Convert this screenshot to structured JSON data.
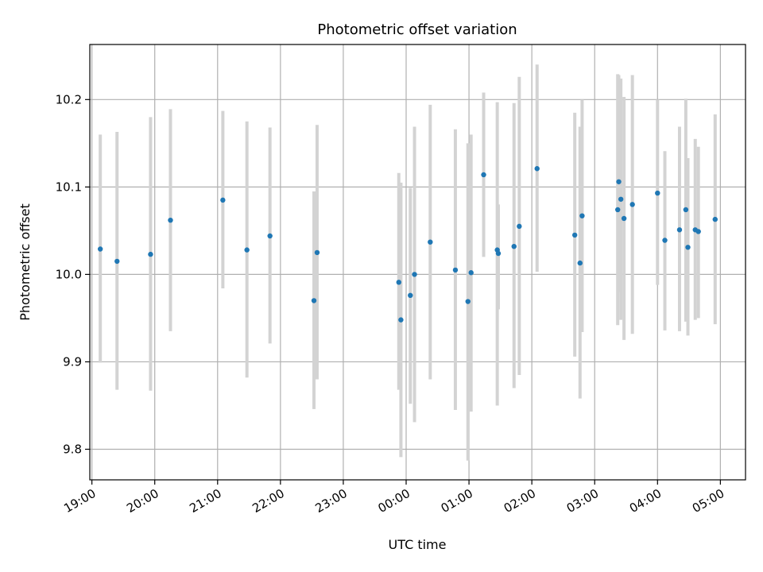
{
  "chart_data": {
    "type": "scatter",
    "title": "Photometric offset variation",
    "xlabel": "UTC time",
    "ylabel": "Photometric offset",
    "x_unit": "minutes from 19:00 UTC",
    "xlim": [
      -2,
      624
    ],
    "ylim": [
      9.765,
      10.263
    ],
    "grid": true,
    "x_ticks": [
      {
        "value": 0,
        "label": "19:00"
      },
      {
        "value": 60,
        "label": "20:00"
      },
      {
        "value": 120,
        "label": "21:00"
      },
      {
        "value": 180,
        "label": "22:00"
      },
      {
        "value": 240,
        "label": "23:00"
      },
      {
        "value": 300,
        "label": "00:00"
      },
      {
        "value": 360,
        "label": "01:00"
      },
      {
        "value": 420,
        "label": "02:00"
      },
      {
        "value": 480,
        "label": "03:00"
      },
      {
        "value": 540,
        "label": "04:00"
      },
      {
        "value": 600,
        "label": "05:00"
      }
    ],
    "y_ticks": [
      {
        "value": 9.8,
        "label": "9.8"
      },
      {
        "value": 9.9,
        "label": "9.9"
      },
      {
        "value": 10.0,
        "label": "10.0"
      },
      {
        "value": 10.1,
        "label": "10.1"
      },
      {
        "value": 10.2,
        "label": "10.2"
      }
    ],
    "point_color": "#1f77b4",
    "errorbar_color": "#d3d3d3",
    "points": [
      {
        "x": 8,
        "y": 10.029,
        "err_low": 9.899,
        "err_high": 10.16
      },
      {
        "x": 24,
        "y": 10.015,
        "err_low": 9.868,
        "err_high": 10.163
      },
      {
        "x": 56,
        "y": 10.023,
        "err_low": 9.867,
        "err_high": 10.18
      },
      {
        "x": 75,
        "y": 10.062,
        "err_low": 9.935,
        "err_high": 10.189
      },
      {
        "x": 125,
        "y": 10.085,
        "err_low": 9.984,
        "err_high": 10.187
      },
      {
        "x": 148,
        "y": 10.028,
        "err_low": 9.882,
        "err_high": 10.175
      },
      {
        "x": 170,
        "y": 10.044,
        "err_low": 9.921,
        "err_high": 10.168
      },
      {
        "x": 212,
        "y": 9.97,
        "err_low": 9.846,
        "err_high": 10.095
      },
      {
        "x": 215,
        "y": 10.025,
        "err_low": 9.88,
        "err_high": 10.171
      },
      {
        "x": 293,
        "y": 9.991,
        "err_low": 9.868,
        "err_high": 10.116
      },
      {
        "x": 295,
        "y": 9.948,
        "err_low": 9.791,
        "err_high": 10.105
      },
      {
        "x": 304,
        "y": 9.976,
        "err_low": 9.852,
        "err_high": 10.099
      },
      {
        "x": 308,
        "y": 10.0,
        "err_low": 9.831,
        "err_high": 10.169
      },
      {
        "x": 323,
        "y": 10.037,
        "err_low": 9.88,
        "err_high": 10.194
      },
      {
        "x": 347,
        "y": 10.005,
        "err_low": 9.845,
        "err_high": 10.166
      },
      {
        "x": 359,
        "y": 9.969,
        "err_low": 9.787,
        "err_high": 10.15
      },
      {
        "x": 362,
        "y": 10.002,
        "err_low": 9.843,
        "err_high": 10.16
      },
      {
        "x": 374,
        "y": 10.114,
        "err_low": 10.02,
        "err_high": 10.208
      },
      {
        "x": 387,
        "y": 10.028,
        "err_low": 9.85,
        "err_high": 10.197
      },
      {
        "x": 388,
        "y": 10.024,
        "err_low": 9.96,
        "err_high": 10.08
      },
      {
        "x": 403,
        "y": 10.032,
        "err_low": 9.87,
        "err_high": 10.196
      },
      {
        "x": 408,
        "y": 10.055,
        "err_low": 9.885,
        "err_high": 10.226
      },
      {
        "x": 425,
        "y": 10.121,
        "err_low": 10.003,
        "err_high": 10.24
      },
      {
        "x": 461,
        "y": 10.045,
        "err_low": 9.906,
        "err_high": 10.185
      },
      {
        "x": 466,
        "y": 10.013,
        "err_low": 9.858,
        "err_high": 10.169
      },
      {
        "x": 468,
        "y": 10.067,
        "err_low": 9.934,
        "err_high": 10.2
      },
      {
        "x": 502,
        "y": 10.074,
        "err_low": 9.942,
        "err_high": 10.229
      },
      {
        "x": 503,
        "y": 10.106,
        "err_low": 9.98,
        "err_high": 10.228
      },
      {
        "x": 505,
        "y": 10.086,
        "err_low": 9.948,
        "err_high": 10.224
      },
      {
        "x": 508,
        "y": 10.064,
        "err_low": 9.925,
        "err_high": 10.203
      },
      {
        "x": 516,
        "y": 10.08,
        "err_low": 9.932,
        "err_high": 10.228
      },
      {
        "x": 540,
        "y": 10.093,
        "err_low": 9.988,
        "err_high": 10.2
      },
      {
        "x": 547,
        "y": 10.039,
        "err_low": 9.936,
        "err_high": 10.141
      },
      {
        "x": 561,
        "y": 10.051,
        "err_low": 9.935,
        "err_high": 10.169
      },
      {
        "x": 567,
        "y": 10.074,
        "err_low": 9.946,
        "err_high": 10.201
      },
      {
        "x": 569,
        "y": 10.031,
        "err_low": 9.93,
        "err_high": 10.133
      },
      {
        "x": 576,
        "y": 10.051,
        "err_low": 9.948,
        "err_high": 10.155
      },
      {
        "x": 579,
        "y": 10.049,
        "err_low": 9.95,
        "err_high": 10.146
      },
      {
        "x": 595,
        "y": 10.063,
        "err_low": 9.943,
        "err_high": 10.183
      }
    ]
  }
}
